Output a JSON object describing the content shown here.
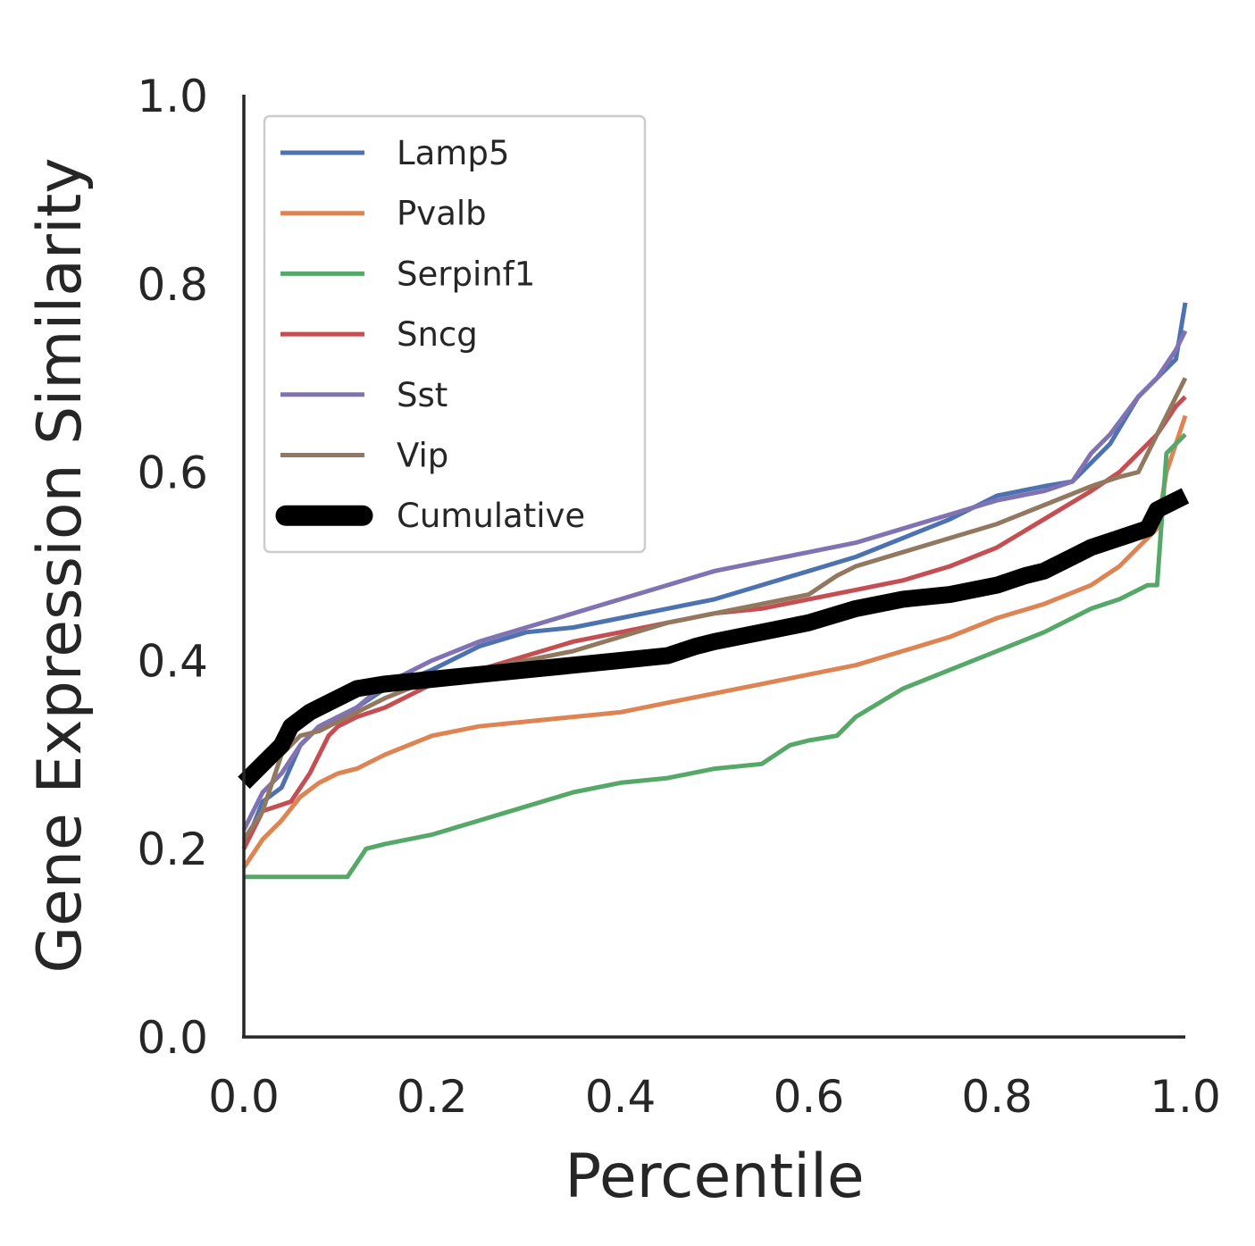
{
  "chart_data": {
    "type": "line",
    "title": "",
    "xlabel": "Percentile",
    "ylabel": "Gene Expression Similarity",
    "xlim": [
      0,
      1
    ],
    "ylim": [
      0,
      1
    ],
    "xticks": [
      "0.0",
      "0.2",
      "0.4",
      "0.6",
      "0.8",
      "1.0"
    ],
    "yticks": [
      "0.0",
      "0.2",
      "0.4",
      "0.6",
      "0.8",
      "1.0"
    ],
    "grid": false,
    "legend_position": "upper-left",
    "series": [
      {
        "name": "Lamp5",
        "color": "#4c72b0",
        "x": [
          0.0,
          0.02,
          0.04,
          0.06,
          0.08,
          0.1,
          0.12,
          0.15,
          0.2,
          0.25,
          0.3,
          0.35,
          0.4,
          0.45,
          0.5,
          0.55,
          0.6,
          0.65,
          0.7,
          0.75,
          0.8,
          0.85,
          0.88,
          0.9,
          0.92,
          0.95,
          0.97,
          0.99,
          1.0
        ],
        "y": [
          0.2,
          0.25,
          0.265,
          0.31,
          0.33,
          0.34,
          0.35,
          0.37,
          0.39,
          0.415,
          0.43,
          0.435,
          0.445,
          0.455,
          0.465,
          0.48,
          0.495,
          0.51,
          0.53,
          0.55,
          0.575,
          0.585,
          0.59,
          0.61,
          0.63,
          0.68,
          0.7,
          0.72,
          0.78
        ]
      },
      {
        "name": "Pvalb",
        "color": "#dd8452",
        "x": [
          0.0,
          0.02,
          0.04,
          0.06,
          0.08,
          0.1,
          0.12,
          0.15,
          0.2,
          0.25,
          0.3,
          0.35,
          0.4,
          0.45,
          0.5,
          0.55,
          0.6,
          0.65,
          0.7,
          0.75,
          0.8,
          0.85,
          0.9,
          0.93,
          0.95,
          0.97,
          0.98,
          1.0
        ],
        "y": [
          0.18,
          0.21,
          0.23,
          0.255,
          0.27,
          0.28,
          0.285,
          0.3,
          0.32,
          0.33,
          0.335,
          0.34,
          0.345,
          0.355,
          0.365,
          0.375,
          0.385,
          0.395,
          0.41,
          0.425,
          0.445,
          0.46,
          0.48,
          0.5,
          0.52,
          0.54,
          0.6,
          0.66
        ]
      },
      {
        "name": "Serpinf1",
        "color": "#55a868",
        "x": [
          0.0,
          0.05,
          0.11,
          0.13,
          0.15,
          0.2,
          0.25,
          0.3,
          0.35,
          0.4,
          0.45,
          0.5,
          0.55,
          0.58,
          0.6,
          0.63,
          0.65,
          0.7,
          0.75,
          0.8,
          0.85,
          0.9,
          0.93,
          0.95,
          0.96,
          0.97,
          0.98,
          1.0
        ],
        "y": [
          0.17,
          0.17,
          0.17,
          0.2,
          0.205,
          0.215,
          0.23,
          0.245,
          0.26,
          0.27,
          0.275,
          0.285,
          0.29,
          0.31,
          0.315,
          0.32,
          0.34,
          0.37,
          0.39,
          0.41,
          0.43,
          0.455,
          0.465,
          0.475,
          0.48,
          0.48,
          0.62,
          0.64
        ]
      },
      {
        "name": "Sncg",
        "color": "#c44e52",
        "x": [
          0.0,
          0.02,
          0.05,
          0.07,
          0.09,
          0.1,
          0.12,
          0.15,
          0.2,
          0.25,
          0.3,
          0.35,
          0.4,
          0.45,
          0.5,
          0.55,
          0.6,
          0.65,
          0.7,
          0.75,
          0.8,
          0.85,
          0.9,
          0.93,
          0.95,
          0.97,
          0.99,
          1.0
        ],
        "y": [
          0.2,
          0.24,
          0.25,
          0.28,
          0.32,
          0.33,
          0.34,
          0.35,
          0.375,
          0.39,
          0.405,
          0.42,
          0.43,
          0.44,
          0.45,
          0.455,
          0.465,
          0.475,
          0.485,
          0.5,
          0.52,
          0.55,
          0.58,
          0.6,
          0.62,
          0.64,
          0.67,
          0.68
        ]
      },
      {
        "name": "Sst",
        "color": "#8172b3",
        "x": [
          0.0,
          0.02,
          0.04,
          0.06,
          0.08,
          0.1,
          0.12,
          0.15,
          0.2,
          0.25,
          0.3,
          0.35,
          0.4,
          0.45,
          0.5,
          0.55,
          0.6,
          0.65,
          0.7,
          0.75,
          0.8,
          0.85,
          0.88,
          0.9,
          0.92,
          0.95,
          0.97,
          0.99,
          1.0
        ],
        "y": [
          0.22,
          0.26,
          0.28,
          0.31,
          0.33,
          0.34,
          0.35,
          0.375,
          0.4,
          0.42,
          0.435,
          0.45,
          0.465,
          0.48,
          0.495,
          0.505,
          0.515,
          0.525,
          0.54,
          0.555,
          0.57,
          0.58,
          0.59,
          0.62,
          0.64,
          0.68,
          0.7,
          0.73,
          0.75
        ]
      },
      {
        "name": "Vip",
        "color": "#937860",
        "x": [
          0.0,
          0.02,
          0.04,
          0.06,
          0.08,
          0.1,
          0.12,
          0.15,
          0.2,
          0.25,
          0.3,
          0.35,
          0.4,
          0.45,
          0.5,
          0.55,
          0.6,
          0.63,
          0.65,
          0.7,
          0.75,
          0.8,
          0.85,
          0.9,
          0.93,
          0.95,
          0.97,
          0.99,
          1.0
        ],
        "y": [
          0.21,
          0.24,
          0.3,
          0.32,
          0.325,
          0.335,
          0.345,
          0.36,
          0.38,
          0.39,
          0.4,
          0.41,
          0.425,
          0.44,
          0.45,
          0.46,
          0.47,
          0.49,
          0.5,
          0.515,
          0.53,
          0.545,
          0.565,
          0.585,
          0.595,
          0.6,
          0.64,
          0.68,
          0.7
        ]
      },
      {
        "name": "Cumulative",
        "color": "#000000",
        "x": [
          0.0,
          0.02,
          0.04,
          0.05,
          0.07,
          0.09,
          0.12,
          0.15,
          0.2,
          0.25,
          0.3,
          0.35,
          0.4,
          0.45,
          0.48,
          0.5,
          0.55,
          0.6,
          0.65,
          0.7,
          0.75,
          0.8,
          0.83,
          0.85,
          0.88,
          0.9,
          0.93,
          0.96,
          0.97,
          0.98,
          1.0
        ],
        "y": [
          0.27,
          0.29,
          0.31,
          0.33,
          0.345,
          0.355,
          0.37,
          0.375,
          0.38,
          0.385,
          0.39,
          0.395,
          0.4,
          0.405,
          0.415,
          0.42,
          0.43,
          0.44,
          0.455,
          0.465,
          0.47,
          0.48,
          0.49,
          0.495,
          0.51,
          0.52,
          0.53,
          0.54,
          0.56,
          0.565,
          0.575
        ]
      }
    ]
  }
}
